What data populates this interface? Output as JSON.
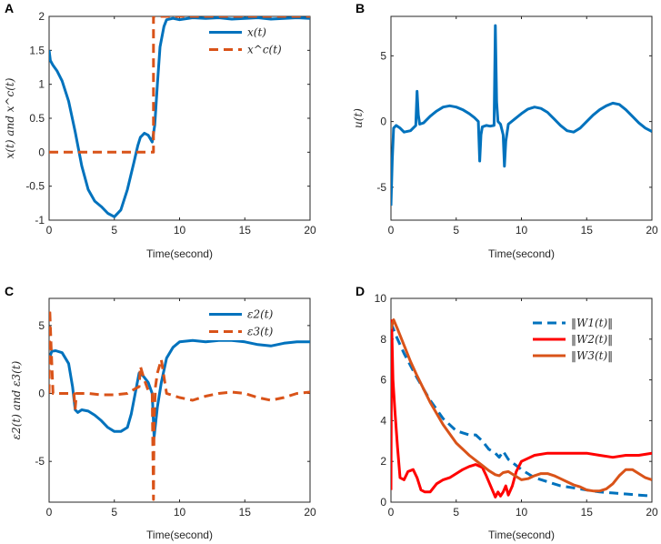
{
  "chart_data": [
    {
      "panel": "A",
      "type": "line",
      "xlabel": "Time(second)",
      "ylabel": "x(t) and x^c(t)",
      "xlim": [
        0,
        20
      ],
      "ylim": [
        -1,
        2
      ],
      "xticks": [
        0,
        5,
        10,
        15,
        20
      ],
      "yticks": [
        -1,
        -0.5,
        0,
        0.5,
        1,
        1.5,
        2
      ],
      "legend_position": "top-right",
      "series": [
        {
          "name": "x(t)",
          "color": "#0072BD",
          "style": "solid",
          "x": [
            0,
            0.1,
            0.3,
            0.6,
            1,
            1.5,
            2,
            2.5,
            3,
            3.5,
            4,
            4.5,
            5,
            5.5,
            6,
            6.5,
            6.8,
            7,
            7.3,
            7.6,
            7.9,
            8.1,
            8.3,
            8.5,
            8.8,
            9,
            9.5,
            10,
            11,
            12,
            13,
            14,
            15,
            16,
            17,
            18,
            19,
            20
          ],
          "y": [
            1.5,
            1.35,
            1.28,
            1.2,
            1.05,
            0.75,
            0.3,
            -0.2,
            -0.55,
            -0.72,
            -0.8,
            -0.9,
            -0.95,
            -0.85,
            -0.55,
            -0.15,
            0.1,
            0.22,
            0.28,
            0.25,
            0.15,
            0.4,
            1.0,
            1.55,
            1.85,
            1.95,
            1.97,
            1.95,
            1.98,
            1.97,
            1.98,
            1.96,
            1.97,
            1.98,
            1.96,
            1.97,
            1.98,
            1.97
          ]
        },
        {
          "name": "x^c(t)",
          "color": "#D95319",
          "style": "dashed",
          "x": [
            0,
            8,
            8,
            20
          ],
          "y": [
            0,
            0,
            2,
            2
          ]
        }
      ]
    },
    {
      "panel": "B",
      "type": "line",
      "xlabel": "Time(second)",
      "ylabel": "u(t)",
      "xlim": [
        0,
        20
      ],
      "ylim": [
        -7.5,
        8
      ],
      "xticks": [
        0,
        5,
        10,
        15,
        20
      ],
      "yticks": [
        -5,
        0,
        5
      ],
      "series": [
        {
          "name": "u(t)",
          "color": "#0072BD",
          "style": "solid",
          "x": [
            0,
            0.1,
            0.2,
            0.4,
            0.7,
            1.0,
            1.5,
            1.9,
            2.0,
            2.1,
            2.2,
            2.5,
            3,
            3.5,
            4,
            4.5,
            5,
            5.5,
            6,
            6.4,
            6.7,
            6.8,
            6.9,
            7.0,
            7.3,
            7.6,
            7.9,
            8.0,
            8.1,
            8.2,
            8.4,
            8.6,
            8.7,
            8.8,
            9.0,
            9.5,
            10,
            10.5,
            11,
            11.5,
            12,
            12.5,
            13,
            13.5,
            14,
            14.5,
            15,
            15.5,
            16,
            16.5,
            17,
            17.5,
            18,
            18.5,
            19,
            19.5,
            20
          ],
          "y": [
            -6.4,
            -3.0,
            -0.5,
            -0.3,
            -0.5,
            -0.8,
            -0.7,
            -0.3,
            2.3,
            0.5,
            -0.2,
            -0.1,
            0.4,
            0.8,
            1.1,
            1.2,
            1.1,
            0.9,
            0.6,
            0.3,
            0.0,
            -3.0,
            -1.0,
            -0.4,
            -0.3,
            -0.35,
            -0.3,
            7.3,
            1.5,
            0.0,
            -0.2,
            -1.0,
            -3.4,
            -1.5,
            -0.2,
            0.2,
            0.6,
            0.95,
            1.1,
            1.0,
            0.7,
            0.2,
            -0.3,
            -0.7,
            -0.8,
            -0.5,
            0.0,
            0.5,
            0.9,
            1.2,
            1.4,
            1.3,
            0.9,
            0.4,
            -0.1,
            -0.5,
            -0.75
          ]
        }
      ]
    },
    {
      "panel": "C",
      "type": "line",
      "xlabel": "Time(second)",
      "ylabel": "ε2(t) and ε3(t)",
      "xlim": [
        0,
        20
      ],
      "ylim": [
        -8,
        7
      ],
      "xticks": [
        0,
        5,
        10,
        15,
        20
      ],
      "yticks": [
        -5,
        0,
        5
      ],
      "legend_position": "top-right",
      "series": [
        {
          "name": "ε2(t)",
          "color": "#0072BD",
          "style": "solid",
          "x": [
            0,
            0.2,
            0.5,
            1,
            1.5,
            1.8,
            2.0,
            2.2,
            2.5,
            3,
            3.5,
            4,
            4.5,
            5,
            5.5,
            6,
            6.3,
            6.6,
            6.9,
            7.2,
            7.6,
            7.9,
            8.05,
            8.3,
            8.6,
            9,
            9.5,
            10,
            11,
            12,
            13,
            14,
            15,
            16,
            17,
            18,
            19,
            20
          ],
          "y": [
            2.5,
            3.1,
            3.15,
            3.0,
            2.2,
            0.5,
            -1.2,
            -1.4,
            -1.2,
            -1.3,
            -1.6,
            -2.0,
            -2.5,
            -2.8,
            -2.8,
            -2.5,
            -1.5,
            0.0,
            1.5,
            1.3,
            0.8,
            0.0,
            -3.2,
            -1.0,
            0.8,
            2.6,
            3.4,
            3.8,
            3.9,
            3.8,
            3.9,
            3.9,
            3.8,
            3.6,
            3.5,
            3.7,
            3.8,
            3.8
          ]
        },
        {
          "name": "ε3(t)",
          "color": "#D95319",
          "style": "dashed",
          "x": [
            0,
            0.05,
            0.15,
            0.3,
            1,
            1.5,
            1.9,
            2.0,
            2.1,
            2.3,
            3,
            4,
            5,
            6,
            6.5,
            6.9,
            7.0,
            7.3,
            7.6,
            7.9,
            8.0,
            8.05,
            8.15,
            8.3,
            8.6,
            9,
            10,
            11,
            12,
            13,
            14,
            15,
            16,
            17,
            18,
            19,
            20
          ],
          "y": [
            0,
            6.2,
            3.5,
            0,
            0,
            0,
            0,
            -1.1,
            0,
            0,
            0,
            -0.1,
            -0.1,
            0,
            0.3,
            0.5,
            2.0,
            1.0,
            0.2,
            0,
            -7.8,
            -2.0,
            0.5,
            1.5,
            2.5,
            0,
            -0.3,
            -0.5,
            -0.2,
            0.0,
            0.1,
            0.0,
            -0.3,
            -0.5,
            -0.3,
            0.0,
            0.1
          ]
        }
      ]
    },
    {
      "panel": "D",
      "type": "line",
      "xlabel": "Time(second)",
      "ylabel": "",
      "xlim": [
        0,
        20
      ],
      "ylim": [
        0,
        10
      ],
      "xticks": [
        0,
        5,
        10,
        15,
        20
      ],
      "yticks": [
        0,
        2,
        4,
        6,
        8,
        10
      ],
      "legend_position": "top-right",
      "series": [
        {
          "name": "‖W1(t)‖",
          "color": "#0072BD",
          "style": "dashed",
          "x": [
            0,
            0.5,
            1,
            1.5,
            2,
            3,
            4,
            5,
            6,
            6.5,
            7,
            7.5,
            8,
            8.3,
            8.6,
            9,
            10,
            11,
            12,
            13,
            14,
            15,
            16,
            17,
            18,
            19,
            20
          ],
          "y": [
            8.8,
            8.0,
            7.3,
            6.7,
            6.1,
            5.0,
            4.1,
            3.5,
            3.3,
            3.3,
            3.0,
            2.6,
            2.4,
            2.2,
            2.5,
            2.1,
            1.6,
            1.2,
            1.0,
            0.8,
            0.7,
            0.6,
            0.5,
            0.45,
            0.4,
            0.35,
            0.3
          ]
        },
        {
          "name": "‖W2(t)‖",
          "color": "#FF0000",
          "style": "solid",
          "x": [
            0,
            0.05,
            0.15,
            0.3,
            0.5,
            0.7,
            1.0,
            1.3,
            1.7,
            2.0,
            2.3,
            2.6,
            3,
            3.5,
            4,
            4.5,
            5,
            5.5,
            6,
            6.5,
            7,
            7.3,
            7.7,
            8.0,
            8.2,
            8.4,
            8.6,
            8.8,
            9.0,
            9.3,
            9.6,
            10,
            11,
            12,
            13,
            14,
            15,
            16,
            17,
            18,
            19,
            20
          ],
          "y": [
            0.6,
            8.9,
            6.0,
            4.5,
            2.7,
            1.2,
            1.1,
            1.5,
            1.6,
            1.2,
            0.6,
            0.5,
            0.5,
            0.9,
            1.1,
            1.2,
            1.4,
            1.6,
            1.75,
            1.85,
            1.7,
            1.3,
            0.7,
            0.25,
            0.5,
            0.3,
            0.5,
            0.8,
            0.35,
            0.8,
            1.5,
            2.0,
            2.3,
            2.4,
            2.4,
            2.4,
            2.4,
            2.3,
            2.2,
            2.3,
            2.3,
            2.4
          ]
        },
        {
          "name": "‖W3(t)‖",
          "color": "#D95319",
          "style": "solid",
          "x": [
            0,
            0.2,
            0.5,
            1,
            1.5,
            2,
            3,
            4,
            5,
            6,
            7,
            7.5,
            8,
            8.3,
            8.6,
            9,
            9.5,
            10,
            10.5,
            11,
            11.5,
            12,
            12.5,
            13,
            13.5,
            14,
            14.5,
            15,
            15.5,
            16,
            16.5,
            17,
            17.5,
            18,
            18.5,
            19,
            19.5,
            20
          ],
          "y": [
            8.5,
            8.95,
            8.5,
            7.7,
            6.9,
            6.2,
            4.9,
            3.8,
            2.9,
            2.3,
            1.8,
            1.55,
            1.35,
            1.3,
            1.45,
            1.5,
            1.3,
            1.1,
            1.15,
            1.3,
            1.4,
            1.4,
            1.3,
            1.15,
            1.0,
            0.85,
            0.75,
            0.6,
            0.55,
            0.55,
            0.65,
            0.9,
            1.3,
            1.6,
            1.6,
            1.4,
            1.2,
            1.1
          ]
        }
      ]
    }
  ]
}
